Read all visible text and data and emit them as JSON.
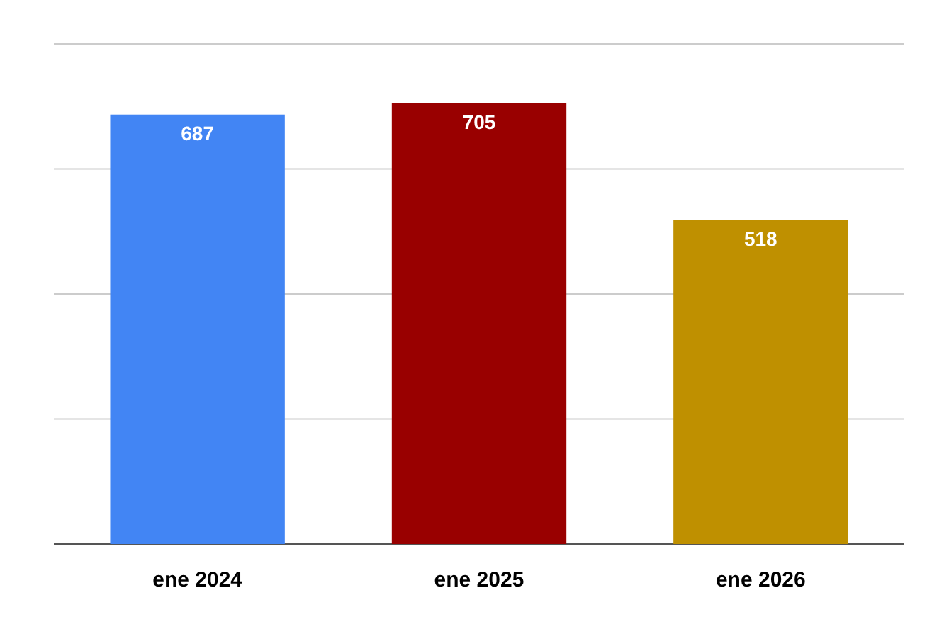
{
  "chart_data": {
    "type": "bar",
    "categories": [
      "ene 2024",
      "ene 2025",
      "ene 2026"
    ],
    "values": [
      687,
      705,
      518
    ],
    "colors": [
      "#4285f4",
      "#990000",
      "#bf9000"
    ],
    "ylim": [
      0,
      800
    ],
    "yticks": [
      {
        "value": 0,
        "label": null
      },
      {
        "value": 200,
        "label": null
      },
      {
        "value": 400,
        "label": null
      },
      {
        "value": 600,
        "label": null
      },
      {
        "value": 800,
        "label": null
      }
    ],
    "grid": "y",
    "tick_labels": "x",
    "data_labels": true
  }
}
